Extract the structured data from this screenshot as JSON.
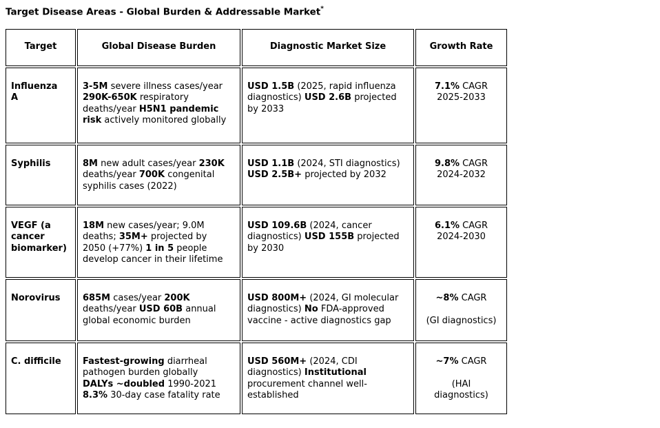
{
  "page": {
    "title": "Target Disease Areas - Global Burden & Addressable Market",
    "title_note": "*"
  },
  "colors": {
    "text": "#000000",
    "border": "#000000",
    "background": "#ffffff"
  },
  "table": {
    "headers": [
      "Target",
      "Global Disease Burden",
      "Diagnostic Market Size",
      "Growth Rate"
    ],
    "rows": [
      {
        "target": [
          [
            [
              "Influenza",
              1
            ]
          ],
          [
            [
              "A",
              1
            ]
          ]
        ],
        "burden": [
          [
            [
              "3-5M",
              1
            ],
            [
              " severe illness cases/year",
              0
            ]
          ],
          [
            [
              "290K-650K",
              1
            ],
            [
              " respiratory",
              0
            ]
          ],
          [
            [
              "deaths/year ",
              0
            ],
            [
              "H5N1 pandemic",
              1
            ]
          ],
          [
            [
              "risk",
              1
            ],
            [
              " actively monitored globally",
              0
            ]
          ]
        ],
        "market": [
          [
            [
              "USD 1.5B",
              1
            ],
            [
              " (2025, rapid influenza",
              0
            ]
          ],
          [
            [
              "diagnostics) ",
              0
            ],
            [
              "USD 2.6B",
              1
            ],
            [
              " projected",
              0
            ]
          ],
          [
            [
              "by 2033",
              0
            ]
          ]
        ],
        "growth": [
          [
            [
              "7.1%",
              1
            ],
            [
              " CAGR",
              0
            ]
          ],
          [
            [
              "2025-2033",
              0
            ]
          ]
        ]
      },
      {
        "target": [
          [
            [
              "Syphilis",
              1
            ]
          ]
        ],
        "burden": [
          [
            [
              "8M",
              1
            ],
            [
              " new adult cases/year ",
              0
            ],
            [
              "230K",
              1
            ]
          ],
          [
            [
              "deaths/year ",
              0
            ],
            [
              "700K",
              1
            ],
            [
              " congenital",
              0
            ]
          ],
          [
            [
              "syphilis cases (2022)",
              0
            ]
          ]
        ],
        "market": [
          [
            [
              "USD 1.1B",
              1
            ],
            [
              " (2024, STI diagnostics)",
              0
            ]
          ],
          [
            [
              "USD 2.5B+",
              1
            ],
            [
              " projected by 2032",
              0
            ]
          ]
        ],
        "growth": [
          [
            [
              "9.8%",
              1
            ],
            [
              " CAGR",
              0
            ]
          ],
          [
            [
              "2024-2032",
              0
            ]
          ]
        ]
      },
      {
        "target": [
          [
            [
              "VEGF (a",
              1
            ]
          ],
          [
            [
              "cancer",
              1
            ]
          ],
          [
            [
              "biomarker)",
              1
            ]
          ]
        ],
        "burden": [
          [
            [
              "18M",
              1
            ],
            [
              " new cases/year; 9.0M",
              0
            ]
          ],
          [
            [
              "deaths; ",
              0
            ],
            [
              "35M+",
              1
            ],
            [
              " projected by",
              0
            ]
          ],
          [
            [
              "2050 (+77%) ",
              0
            ],
            [
              "1 in 5",
              1
            ],
            [
              " people",
              0
            ]
          ],
          [
            [
              "develop cancer in their lifetime",
              0
            ]
          ]
        ],
        "market": [
          [
            [
              "USD 109.6B",
              1
            ],
            [
              " (2024, cancer",
              0
            ]
          ],
          [
            [
              "diagnostics) ",
              0
            ],
            [
              "USD 155B",
              1
            ],
            [
              " projected",
              0
            ]
          ],
          [
            [
              "by 2030",
              0
            ]
          ]
        ],
        "growth": [
          [
            [
              "6.1%",
              1
            ],
            [
              " CAGR",
              0
            ]
          ],
          [
            [
              "2024-2030",
              0
            ]
          ]
        ]
      },
      {
        "target": [
          [
            [
              "Norovirus",
              1
            ]
          ]
        ],
        "burden": [
          [
            [
              "685M",
              1
            ],
            [
              " cases/year ",
              0
            ],
            [
              "200K",
              1
            ]
          ],
          [
            [
              "deaths/year ",
              0
            ],
            [
              "USD 60B",
              1
            ],
            [
              " annual",
              0
            ]
          ],
          [
            [
              "global economic burden",
              0
            ]
          ]
        ],
        "market": [
          [
            [
              "USD 800M+",
              1
            ],
            [
              " (2024, GI molecular",
              0
            ]
          ],
          [
            [
              "diagnostics) ",
              0
            ],
            [
              "No",
              1
            ],
            [
              " FDA-approved",
              0
            ]
          ],
          [
            [
              "vaccine - active diagnostics gap",
              0
            ]
          ]
        ],
        "growth": [
          [
            [
              "~8%",
              1
            ],
            [
              " CAGR",
              0
            ]
          ],
          [],
          [
            [
              "(GI diagnostics)",
              0
            ]
          ]
        ]
      },
      {
        "target": [
          [
            [
              "C. difficile",
              1
            ]
          ]
        ],
        "burden": [
          [
            [
              "Fastest-growing",
              1
            ],
            [
              " diarrheal",
              0
            ]
          ],
          [
            [
              "pathogen burden globally",
              0
            ]
          ],
          [
            [
              "DALYs ~doubled",
              1
            ],
            [
              " 1990-2021",
              0
            ]
          ],
          [
            [
              "8.3%",
              1
            ],
            [
              " 30-day case fatality rate",
              0
            ]
          ]
        ],
        "market": [
          [
            [
              "USD 560M+",
              1
            ],
            [
              " (2024, CDI",
              0
            ]
          ],
          [
            [
              "diagnostics) ",
              0
            ],
            [
              "Institutional",
              1
            ]
          ],
          [
            [
              "procurement channel well-",
              0
            ]
          ],
          [
            [
              "established",
              0
            ]
          ]
        ],
        "growth": [
          [
            [
              "~7%",
              1
            ],
            [
              " CAGR",
              0
            ]
          ],
          [],
          [
            [
              "(HAI",
              0
            ]
          ],
          [
            [
              "diagnostics)",
              0
            ]
          ]
        ]
      }
    ]
  }
}
